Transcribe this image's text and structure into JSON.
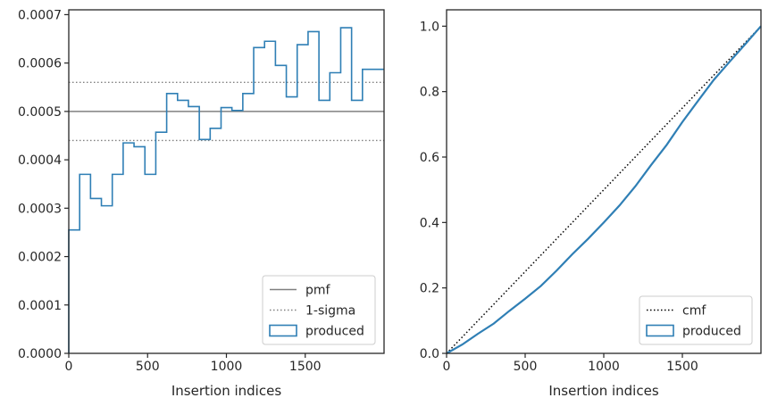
{
  "chart_data": [
    {
      "type": "histogram",
      "xlabel": "Insertion indices",
      "ylabel": "",
      "xlim": [
        0,
        2000
      ],
      "ylim": [
        0,
        0.00071
      ],
      "xticks": [
        0,
        500,
        1000,
        1500
      ],
      "yticks": [
        0.0,
        0.0001,
        0.0002,
        0.0003,
        0.0004,
        0.0005,
        0.0006,
        0.0007
      ],
      "ytick_labels": [
        "0.0000",
        "0.0001",
        "0.0002",
        "0.0003",
        "0.0004",
        "0.0005",
        "0.0006",
        "0.0007"
      ],
      "bin_width": 69,
      "bin_edges": [
        0,
        69,
        138,
        207,
        276,
        345,
        414,
        483,
        552,
        621,
        690,
        759,
        828,
        897,
        966,
        1035,
        1104,
        1173,
        1242,
        1311,
        1380,
        1449,
        1518,
        1587,
        1656,
        1725,
        1794,
        1863,
        2000
      ],
      "bin_values": [
        0.000255,
        0.00037,
        0.00032,
        0.000305,
        0.00037,
        0.000435,
        0.000427,
        0.00037,
        0.000457,
        0.000537,
        0.000523,
        0.00051,
        0.000442,
        0.000465,
        0.000508,
        0.000502,
        0.000537,
        0.000632,
        0.000645,
        0.000595,
        0.00053,
        0.000638,
        0.000665,
        0.000523,
        0.00058,
        0.000673,
        0.000523,
        0.000587
      ],
      "reference_lines": [
        {
          "name": "pmf",
          "value": 0.0005,
          "style": "solid",
          "color": "#808080"
        },
        {
          "name": "1-sigma",
          "value": 0.00056,
          "style": "dotted",
          "color": "#808080"
        },
        {
          "name": "1-sigma",
          "value": 0.00044,
          "style": "dotted",
          "color": "#808080"
        }
      ],
      "series_color": "#2f7fb5",
      "legend": {
        "location": "lower right",
        "entries": [
          {
            "label": "pmf",
            "kind": "solid-line"
          },
          {
            "label": "1-sigma",
            "kind": "dotted-line"
          },
          {
            "label": "produced",
            "kind": "patch"
          }
        ]
      }
    },
    {
      "type": "line",
      "xlabel": "Insertion indices",
      "ylabel": "",
      "xlim": [
        0,
        2000
      ],
      "ylim": [
        0,
        1.05
      ],
      "xticks": [
        0,
        500,
        1000,
        1500
      ],
      "yticks": [
        0.0,
        0.2,
        0.4,
        0.6,
        0.8,
        1.0
      ],
      "ytick_labels": [
        "0.0",
        "0.2",
        "0.4",
        "0.6",
        "0.8",
        "1.0"
      ],
      "series": [
        {
          "name": "cmf",
          "style": "dotted",
          "color": "#000000",
          "x": [
            0,
            2000
          ],
          "y": [
            0,
            1.0
          ]
        },
        {
          "name": "produced",
          "style": "solid",
          "color": "#2f7fb5",
          "x": [
            0,
            100,
            200,
            300,
            400,
            500,
            600,
            700,
            800,
            900,
            1000,
            1100,
            1200,
            1300,
            1400,
            1500,
            1600,
            1700,
            1800,
            1900,
            2000
          ],
          "y": [
            0,
            0.027,
            0.06,
            0.091,
            0.13,
            0.167,
            0.206,
            0.253,
            0.303,
            0.35,
            0.4,
            0.452,
            0.51,
            0.575,
            0.637,
            0.707,
            0.772,
            0.836,
            0.891,
            0.945,
            1.0
          ]
        }
      ],
      "legend": {
        "location": "lower right",
        "entries": [
          {
            "label": "cmf",
            "kind": "dotted-line"
          },
          {
            "label": "produced",
            "kind": "patch"
          }
        ]
      }
    }
  ]
}
